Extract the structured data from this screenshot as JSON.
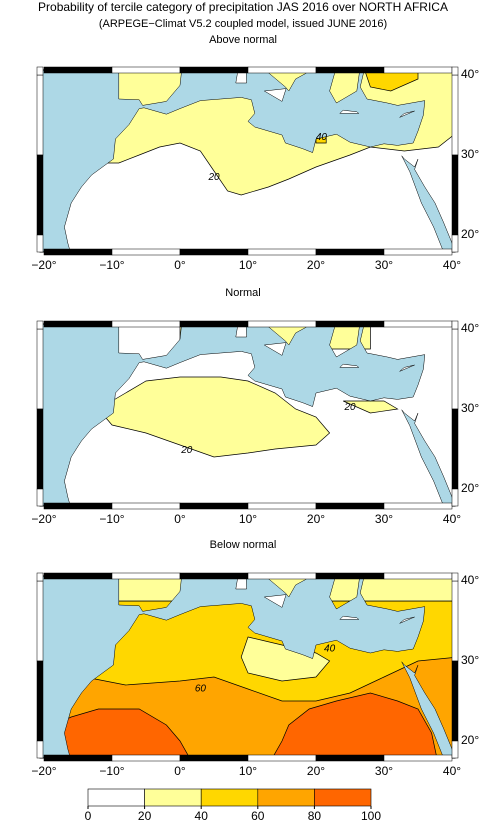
{
  "title": "Probability of tercile category of precipitation JAS 2016 over NORTH AFRICA",
  "subtitle": "(ARPEGE−Climat V5.2 coupled model, issued JUNE 2016)",
  "panels": [
    {
      "title": "Above normal",
      "contour_labels": [
        "20",
        "40"
      ]
    },
    {
      "title": "Normal",
      "contour_labels": [
        "20",
        "20"
      ]
    },
    {
      "title": "Below normal",
      "contour_labels": [
        "40",
        "60"
      ]
    }
  ],
  "x_ticks": [
    "−20°",
    "−10°",
    "0°",
    "10°",
    "20°",
    "30°",
    "40°"
  ],
  "y_ticks": [
    "20°",
    "30°",
    "40°"
  ],
  "colorbar": {
    "ticks": [
      0,
      20,
      40,
      60,
      80,
      100
    ],
    "colors": [
      "#ffffff",
      "#ffff99",
      "#ffd700",
      "#ffa500",
      "#ff6600"
    ]
  }
}
